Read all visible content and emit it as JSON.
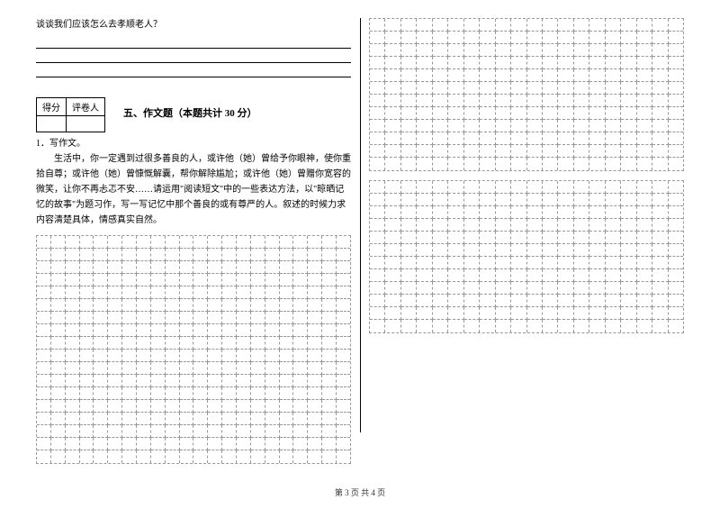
{
  "topQuestion": "谈谈我们应该怎么去孝顺老人？",
  "scoreHeaders": {
    "score": "得分",
    "reviewer": "评卷人"
  },
  "sectionTitle": "五、作文题（本题共计 30 分）",
  "essay": {
    "number": "1．写作文。",
    "prompt": "生活中，你一定遇到过很多善良的人，或许他（她）曾给予你眼神，使你重拾自尊；或许他（她）曾慷慨解囊，帮你解除尴尬；或许他（她）曾赠你宽容的微笑，让你不再忐忑不安……请运用\"阅读短文\"中的一些表达方法，以\"晾晒记忆的故事\"为题习作，写一写记忆中那个善良的或有尊严的人。叙述的时候力求内容清楚具体，情感真实自然。"
  },
  "grid": {
    "leftCols": 22,
    "leftRows": 18,
    "rightTopCols": 20,
    "rightTopRows": 12,
    "rightBottomCols": 20,
    "rightBottomRows": 12,
    "borderColor": "#999999"
  },
  "footer": "第 3 页 共 4 页",
  "colors": {
    "text": "#000000",
    "background": "#ffffff",
    "gridDash": "#999999"
  }
}
